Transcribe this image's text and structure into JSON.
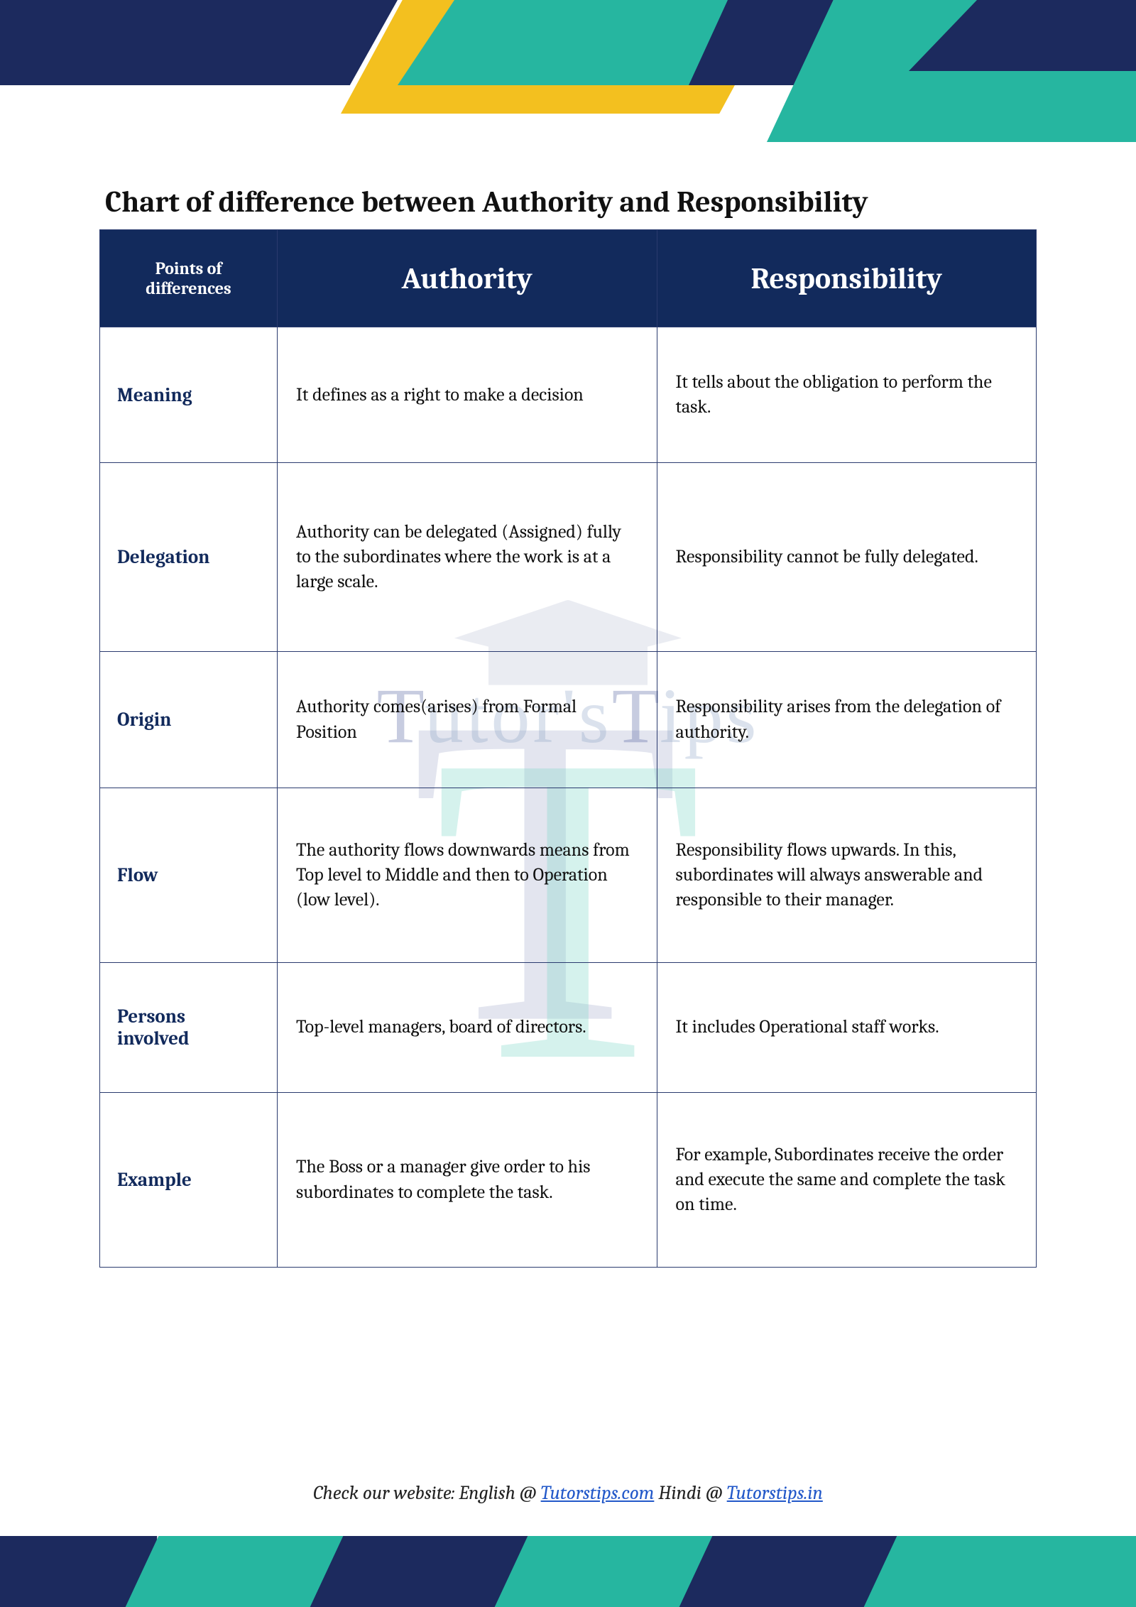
{
  "title": "Chart of difference between Authority and Responsibility",
  "columns": {
    "points": "Points of differences",
    "col1": "Authority",
    "col2": "Responsibility"
  },
  "rows": [
    {
      "label": "Meaning",
      "col1": "It defines as a right to make a decision",
      "col2": "It tells about the obligation to perform the task."
    },
    {
      "label": "Delegation",
      "col1": "Authority can be delegated (Assigned) fully to the subordinates where the work is at a large scale.",
      "col2": "Responsibility cannot be fully delegated."
    },
    {
      "label": "Origin",
      "col1": "Authority comes(arises) from Formal Position",
      "col2": "Responsibility arises from the delegation of authority."
    },
    {
      "label": "Flow",
      "col1": "The authority flows downwards means from Top level to Middle and then to Operation (low level).",
      "col2": "Responsibility flows upwards. In this, subordinates will always answerable and responsible to their manager."
    },
    {
      "label": "Persons involved",
      "col1": "Top-level managers, board of directors.",
      "col2": "It includes Operational staff works."
    },
    {
      "label": "Example",
      "col1": "The Boss or a manager give order to his subordinates to complete the task.",
      "col2": "For example, Subordinates receive the order and execute the same and complete the task on time."
    }
  ],
  "footer": {
    "prefix": "Check our website: English @ ",
    "link1_text": "Tutorstips.com",
    "mid": " Hindi @ ",
    "link2_text": "Tutorstips.in"
  },
  "watermark": {
    "brand_small": "utor's",
    "brand_suffix": "ips",
    "big_letter": "T"
  },
  "colors": {
    "navy": "#122a5c",
    "teal": "#26b6a0",
    "yellow": "#f3c01f",
    "link": "#2258c9",
    "text": "#111111",
    "border": "#2a3a6e"
  }
}
